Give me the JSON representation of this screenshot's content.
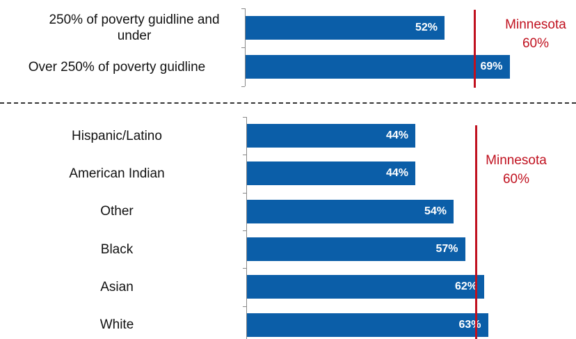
{
  "chart_data": [
    {
      "type": "bar",
      "orientation": "horizontal",
      "categories": [
        "250% of poverty guidline and under",
        "Over 250% of poverty guidline"
      ],
      "values": [
        52,
        69
      ],
      "value_labels": [
        "52%",
        "69%"
      ],
      "color": "#0b5ea8",
      "reference": {
        "name": "Minnesota",
        "value": 60,
        "label": "60%",
        "color": "#c0111f"
      }
    },
    {
      "type": "bar",
      "orientation": "horizontal",
      "categories": [
        "Hispanic/Latino",
        "American Indian",
        "Other",
        "Black",
        "Asian",
        "White"
      ],
      "values": [
        44,
        44,
        54,
        57,
        62,
        63
      ],
      "value_labels": [
        "44%",
        "44%",
        "54%",
        "57%",
        "62%",
        "63%"
      ],
      "color": "#0b5ea8",
      "reference": {
        "name": "Minnesota",
        "value": 60,
        "label": "60%",
        "color": "#c0111f"
      }
    }
  ]
}
